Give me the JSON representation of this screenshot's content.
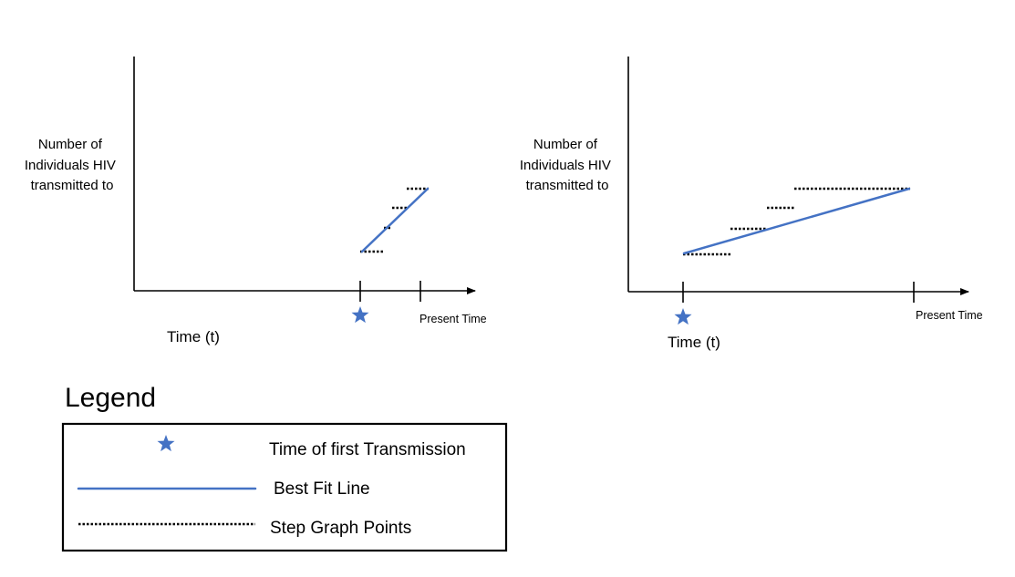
{
  "colors": {
    "best_fit_line": "#4472C4",
    "star": "#4472C4",
    "step_points": "#000000",
    "axes": "#000000"
  },
  "panels": [
    {
      "ylabel_lines": [
        "Number of",
        "Individuals HIV",
        "transmitted to"
      ],
      "xlabel": "Time (t)",
      "present_label": "Present Time"
    },
    {
      "ylabel_lines": [
        "Number of",
        "Individuals HIV",
        "transmitted to"
      ],
      "xlabel": "Time (t)",
      "present_label": "Present Time"
    }
  ],
  "legend": {
    "title": "Legend",
    "items": [
      {
        "icon": "star-icon",
        "label": "Time of first Transmission"
      },
      {
        "icon": "solid-line-icon",
        "label": "Best Fit Line"
      },
      {
        "icon": "dotted-line-icon",
        "label": "Step Graph Points"
      }
    ]
  }
}
